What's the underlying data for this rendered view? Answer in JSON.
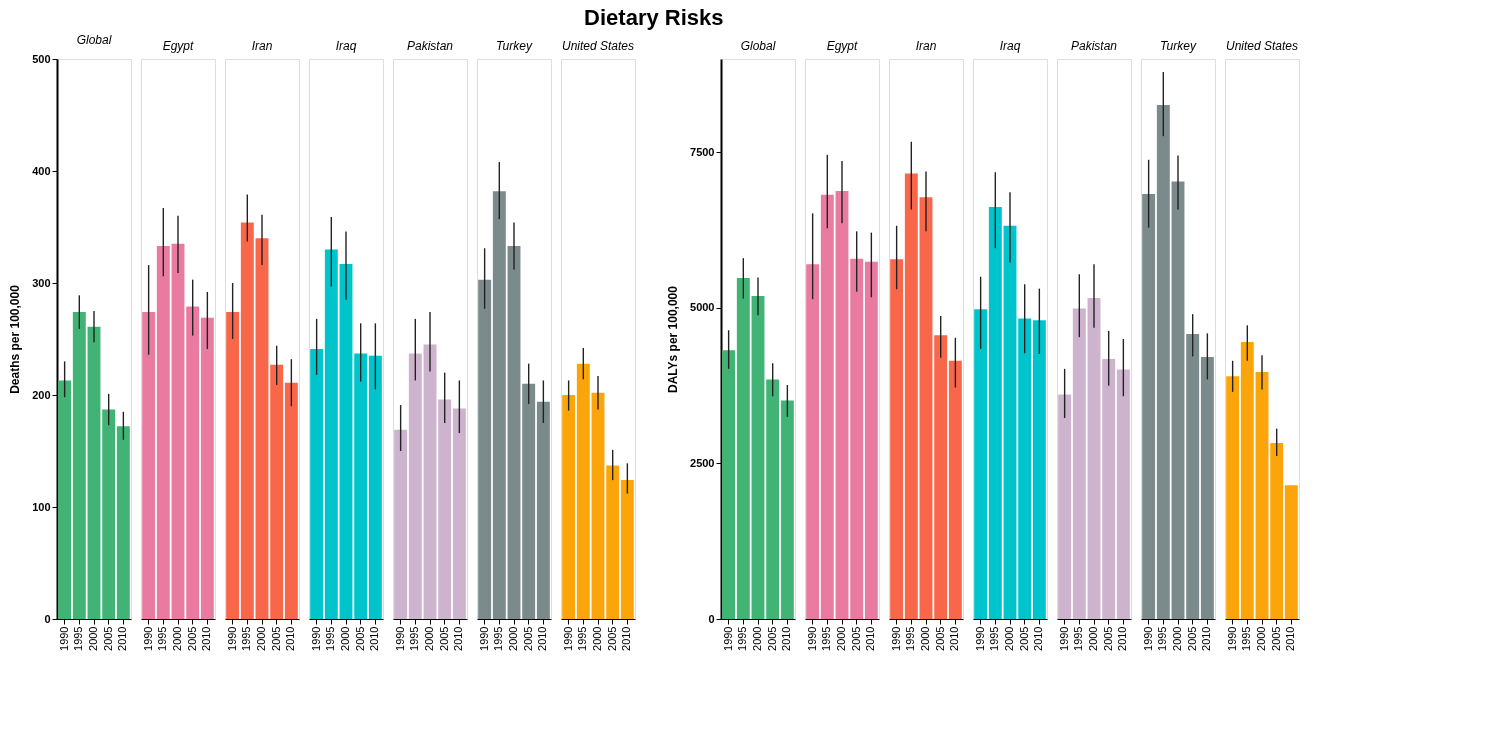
{
  "chart_data": [
    {
      "type": "bar",
      "title": "Global",
      "annotations": [
        "Dietary Risks"
      ],
      "ylabel": "Deaths per 100,000",
      "categories": [
        "1990",
        "1995",
        "2000",
        "2005",
        "2010"
      ],
      "color": "#41b375",
      "values": [
        213,
        274,
        261,
        187,
        172
      ],
      "errors": [
        [
          198,
          230
        ],
        [
          259,
          289
        ],
        [
          247,
          275
        ],
        [
          173,
          201
        ],
        [
          160,
          185
        ]
      ],
      "ylim": [
        0,
        500
      ],
      "yticks": [
        0,
        100,
        200,
        300,
        400,
        500
      ],
      "grid": false
    },
    {
      "type": "bar",
      "title": "Egypt",
      "categories": [
        "1990",
        "1995",
        "2000",
        "2005",
        "2010"
      ],
      "color": "#e97ba1",
      "values": [
        274,
        333,
        335,
        279,
        269
      ],
      "errors": [
        [
          236,
          316
        ],
        [
          306,
          367
        ],
        [
          309,
          360
        ],
        [
          253,
          303
        ],
        [
          241,
          292
        ]
      ],
      "ylim": [
        0,
        500
      ],
      "yticks": [
        0,
        100,
        200,
        300,
        400,
        500
      ],
      "tick_labels": "x",
      "grid": false
    },
    {
      "type": "bar",
      "title": "Iran",
      "categories": [
        "1990",
        "1995",
        "2000",
        "2005",
        "2010"
      ],
      "color": "#f9674a",
      "values": [
        274,
        354,
        340,
        227,
        211
      ],
      "errors": [
        [
          250,
          300
        ],
        [
          337,
          379
        ],
        [
          316,
          361
        ],
        [
          209,
          244
        ],
        [
          190,
          232
        ]
      ],
      "ylim": [
        0,
        500
      ],
      "yticks": [
        0,
        100,
        200,
        300,
        400,
        500
      ],
      "tick_labels": "x",
      "grid": false
    },
    {
      "type": "bar",
      "title": "Iraq",
      "categories": [
        "1990",
        "1995",
        "2000",
        "2005",
        "2010"
      ],
      "color": "#00c4cc",
      "values": [
        241,
        330,
        317,
        237,
        235
      ],
      "errors": [
        [
          218,
          268
        ],
        [
          297,
          359
        ],
        [
          285,
          346
        ],
        [
          212,
          264
        ],
        [
          205,
          264
        ]
      ],
      "ylim": [
        0,
        500
      ],
      "yticks": [
        0,
        100,
        200,
        300,
        400,
        500
      ],
      "tick_labels": "x",
      "grid": false
    },
    {
      "type": "bar",
      "title": "Pakistan",
      "categories": [
        "1990",
        "1995",
        "2000",
        "2005",
        "2010"
      ],
      "color": "#cdb3cd",
      "values": [
        169,
        237,
        245,
        196,
        188
      ],
      "errors": [
        [
          150,
          191
        ],
        [
          213,
          268
        ],
        [
          221,
          274
        ],
        [
          175,
          220
        ],
        [
          166,
          213
        ]
      ],
      "ylim": [
        0,
        500
      ],
      "yticks": [
        0,
        100,
        200,
        300,
        400,
        500
      ],
      "tick_labels": "x",
      "grid": false
    },
    {
      "type": "bar",
      "title": "Turkey",
      "categories": [
        "1990",
        "1995",
        "2000",
        "2005",
        "2010"
      ],
      "color": "#7b8a8a",
      "values": [
        303,
        382,
        333,
        210,
        194
      ],
      "errors": [
        [
          277,
          331
        ],
        [
          357,
          408
        ],
        [
          312,
          354
        ],
        [
          192,
          228
        ],
        [
          175,
          213
        ]
      ],
      "ylim": [
        0,
        500
      ],
      "yticks": [
        0,
        100,
        200,
        300,
        400,
        500
      ],
      "tick_labels": "x",
      "grid": false
    },
    {
      "type": "bar",
      "title": "United States",
      "categories": [
        "1990",
        "1995",
        "2000",
        "2005",
        "2010"
      ],
      "color": "#fca50a",
      "values": [
        200,
        228,
        202,
        137,
        124
      ],
      "errors": [
        [
          186,
          213
        ],
        [
          214,
          242
        ],
        [
          187,
          217
        ],
        [
          124,
          151
        ],
        [
          112,
          139
        ]
      ],
      "ylim": [
        0,
        500
      ],
      "yticks": [
        0,
        100,
        200,
        300,
        400,
        500
      ],
      "tick_labels": "x",
      "grid": false
    },
    {
      "type": "bar",
      "title": "Global",
      "ylabel": "DALYs per 100,000",
      "categories": [
        "1990",
        "1995",
        "2000",
        "2005",
        "2010"
      ],
      "color": "#41b375",
      "values": [
        4320,
        5480,
        5190,
        3850,
        3510
      ],
      "errors": [
        [
          4020,
          4640
        ],
        [
          5150,
          5800
        ],
        [
          4880,
          5490
        ],
        [
          3580,
          4110
        ],
        [
          3250,
          3760
        ]
      ],
      "ylim": [
        0,
        9000
      ],
      "yticks": [
        0,
        2500,
        5000,
        7500
      ],
      "grid": false
    },
    {
      "type": "bar",
      "title": "Egypt",
      "categories": [
        "1990",
        "1995",
        "2000",
        "2005",
        "2010"
      ],
      "color": "#e97ba1",
      "values": [
        5700,
        6820,
        6880,
        5790,
        5740
      ],
      "errors": [
        [
          5140,
          6520
        ],
        [
          6280,
          7460
        ],
        [
          6360,
          7360
        ],
        [
          5260,
          6230
        ],
        [
          5170,
          6210
        ]
      ],
      "ylim": [
        0,
        9000
      ],
      "yticks": [
        0,
        2500,
        5000,
        7500
      ],
      "tick_labels": "x",
      "grid": false
    },
    {
      "type": "bar",
      "title": "Iran",
      "categories": [
        "1990",
        "1995",
        "2000",
        "2005",
        "2010"
      ],
      "color": "#f9674a",
      "values": [
        5780,
        7160,
        6780,
        4560,
        4150
      ],
      "errors": [
        [
          5300,
          6320
        ],
        [
          6580,
          7670
        ],
        [
          6230,
          7190
        ],
        [
          4200,
          4870
        ],
        [
          3720,
          4520
        ]
      ],
      "ylim": [
        0,
        9000
      ],
      "yticks": [
        0,
        2500,
        5000,
        7500
      ],
      "tick_labels": "x",
      "grid": false
    },
    {
      "type": "bar",
      "title": "Iraq",
      "categories": [
        "1990",
        "1995",
        "2000",
        "2005",
        "2010"
      ],
      "color": "#00c4cc",
      "values": [
        4980,
        6620,
        6320,
        4830,
        4800
      ],
      "errors": [
        [
          4340,
          5500
        ],
        [
          5960,
          7180
        ],
        [
          5730,
          6860
        ],
        [
          4270,
          5380
        ],
        [
          4260,
          5310
        ]
      ],
      "ylim": [
        0,
        9000
      ],
      "yticks": [
        0,
        2500,
        5000,
        7500
      ],
      "tick_labels": "x",
      "grid": false
    },
    {
      "type": "bar",
      "title": "Pakistan",
      "categories": [
        "1990",
        "1995",
        "2000",
        "2005",
        "2010"
      ],
      "color": "#cdb3cd",
      "values": [
        3610,
        4990,
        5160,
        4180,
        4010
      ],
      "errors": [
        [
          3230,
          4020
        ],
        [
          4530,
          5540
        ],
        [
          4680,
          5700
        ],
        [
          3750,
          4630
        ],
        [
          3580,
          4500
        ]
      ],
      "ylim": [
        0,
        9000
      ],
      "yticks": [
        0,
        2500,
        5000,
        7500
      ],
      "tick_labels": "x",
      "grid": false
    },
    {
      "type": "bar",
      "title": "Turkey",
      "categories": [
        "1990",
        "1995",
        "2000",
        "2005",
        "2010"
      ],
      "color": "#7b8a8a",
      "values": [
        6830,
        8260,
        7030,
        4580,
        4210
      ],
      "errors": [
        [
          6290,
          7380
        ],
        [
          7760,
          8790
        ],
        [
          6580,
          7450
        ],
        [
          4220,
          4900
        ],
        [
          3850,
          4590
        ]
      ],
      "ylim": [
        0,
        9000
      ],
      "yticks": [
        0,
        2500,
        5000,
        7500
      ],
      "tick_labels": "x",
      "grid": false
    },
    {
      "type": "bar",
      "title": "United States",
      "categories": [
        "1990",
        "1995",
        "2000",
        "2005",
        "2010"
      ],
      "color": "#fca50a",
      "values": [
        3900,
        4450,
        3970,
        2830,
        2150
      ],
      "errors": [
        [
          3650,
          4150
        ],
        [
          4150,
          4720
        ],
        [
          3690,
          4240
        ],
        [
          2620,
          3060
        ],
        null
      ],
      "ylim": [
        0,
        9000
      ],
      "yticks": [
        0,
        2500,
        5000,
        7500
      ],
      "tick_labels": "x",
      "grid": false
    }
  ]
}
